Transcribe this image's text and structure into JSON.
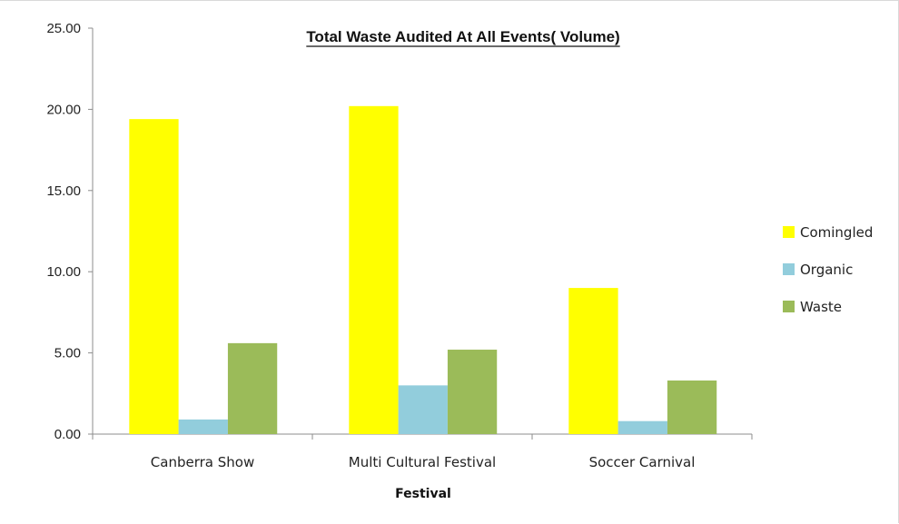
{
  "chart_data": {
    "type": "bar",
    "title": "Total Waste Audited At All Events( Volume)",
    "xlabel": "Festival",
    "ylabel": "",
    "ylim": [
      0,
      25
    ],
    "yticks": [
      "0.00",
      "5.00",
      "10.00",
      "15.00",
      "20.00",
      "25.00"
    ],
    "categories": [
      "Canberra Show",
      "Multi Cultural Festival",
      "Soccer Carnival"
    ],
    "series": [
      {
        "name": "Comingled",
        "color": "#ffff00",
        "values": [
          19.4,
          20.2,
          9.0
        ]
      },
      {
        "name": "Organic",
        "color": "#92cddc",
        "values": [
          0.9,
          3.0,
          0.8
        ]
      },
      {
        "name": "Waste",
        "color": "#9bbb59",
        "values": [
          5.6,
          5.2,
          3.3
        ]
      }
    ],
    "legend_position": "right",
    "grid": false
  }
}
